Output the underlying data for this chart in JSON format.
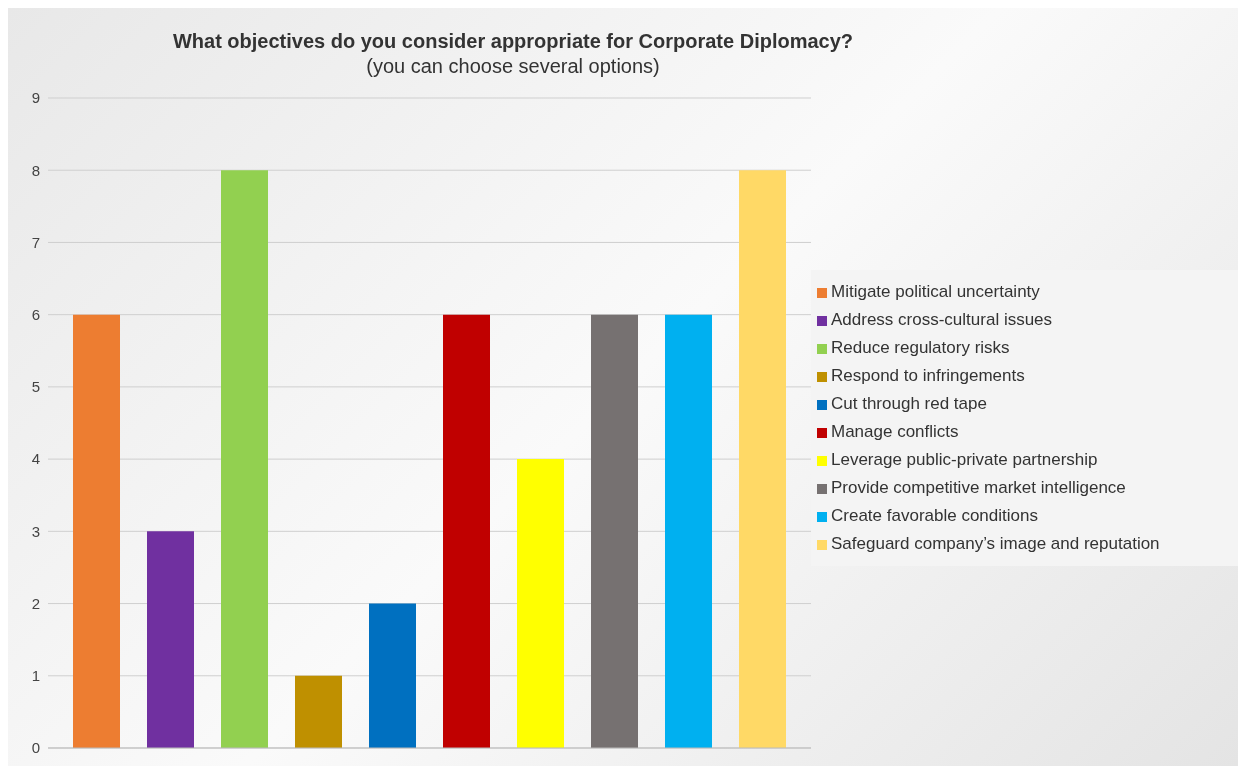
{
  "chart_data": {
    "type": "bar",
    "title": "What objectives do you consider appropriate for Corporate Diplomacy?",
    "subtitle": "(you can choose several options)",
    "categories": [
      null
    ],
    "series": [
      {
        "name": "Mitigate political uncertainty",
        "color": "#ed7d31",
        "values": [
          6
        ]
      },
      {
        "name": "Address cross-cultural issues",
        "color": "#7030a0",
        "values": [
          3
        ]
      },
      {
        "name": "Reduce regulatory risks",
        "color": "#92d050",
        "values": [
          8
        ]
      },
      {
        "name": "Respond to infringements",
        "color": "#bf9000",
        "values": [
          1
        ]
      },
      {
        "name": "Cut through red tape",
        "color": "#0070c0",
        "values": [
          2
        ]
      },
      {
        "name": "Manage conflicts",
        "color": "#c00000",
        "values": [
          6
        ]
      },
      {
        "name": "Leverage public-private partnership",
        "color": "#ffff00",
        "values": [
          4
        ]
      },
      {
        "name": "Provide competitive market intelligence",
        "color": "#767171",
        "values": [
          6
        ]
      },
      {
        "name": "Create favorable conditions",
        "color": "#00b0f0",
        "values": [
          6
        ]
      },
      {
        "name": "Safeguard company’s image and reputation",
        "color": "#ffd966",
        "values": [
          8
        ]
      }
    ],
    "ylim": [
      0,
      9
    ],
    "yticks": [
      0,
      1,
      2,
      3,
      4,
      5,
      6,
      7,
      8,
      9
    ],
    "grid": "y",
    "legend": "right"
  }
}
